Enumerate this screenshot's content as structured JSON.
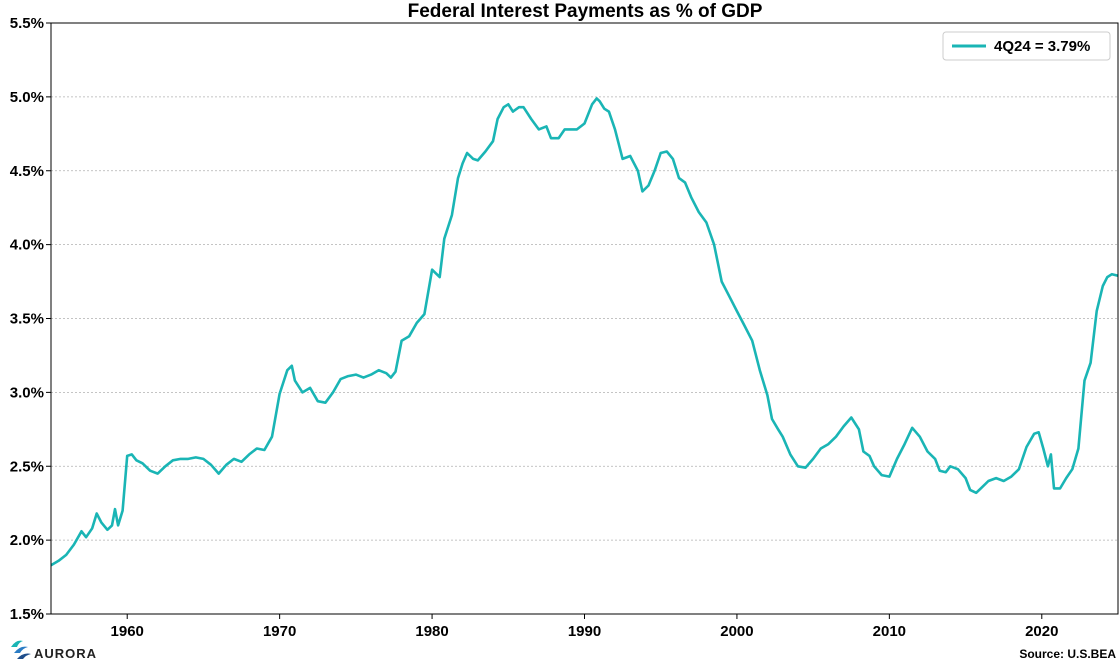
{
  "chart_data": {
    "type": "line",
    "title": "Federal Interest Payments as % of GDP",
    "xlabel": "",
    "ylabel": "",
    "xlim": [
      1955.0,
      2025.0
    ],
    "ylim": [
      1.5,
      5.5
    ],
    "x_ticks": [
      1960,
      1970,
      1980,
      1990,
      2000,
      2010,
      2020
    ],
    "x_tick_labels": [
      "1960",
      "1970",
      "1980",
      "1990",
      "2000",
      "2010",
      "2020"
    ],
    "y_ticks": [
      1.5,
      2.0,
      2.5,
      3.0,
      3.5,
      4.0,
      4.5,
      5.0,
      5.5
    ],
    "y_tick_labels": [
      "1.5%",
      "2.0%",
      "2.5%",
      "3.0%",
      "3.5%",
      "4.0%",
      "4.5%",
      "5.0%",
      "5.5%"
    ],
    "grid": "horizontal dotted",
    "legend_position": "top-right",
    "series": [
      {
        "name": "4Q24 = 3.79%",
        "color": "#1ab5b5",
        "points": [
          [
            1955.0,
            1.83
          ],
          [
            1955.5,
            1.86
          ],
          [
            1956.0,
            1.9
          ],
          [
            1956.5,
            1.97
          ],
          [
            1957.0,
            2.06
          ],
          [
            1957.3,
            2.02
          ],
          [
            1957.7,
            2.08
          ],
          [
            1958.0,
            2.18
          ],
          [
            1958.3,
            2.12
          ],
          [
            1958.7,
            2.07
          ],
          [
            1959.0,
            2.1
          ],
          [
            1959.2,
            2.21
          ],
          [
            1959.4,
            2.1
          ],
          [
            1959.7,
            2.2
          ],
          [
            1960.0,
            2.57
          ],
          [
            1960.3,
            2.58
          ],
          [
            1960.6,
            2.54
          ],
          [
            1961.0,
            2.52
          ],
          [
            1961.5,
            2.47
          ],
          [
            1962.0,
            2.45
          ],
          [
            1962.5,
            2.5
          ],
          [
            1963.0,
            2.54
          ],
          [
            1963.5,
            2.55
          ],
          [
            1964.0,
            2.55
          ],
          [
            1964.5,
            2.56
          ],
          [
            1965.0,
            2.55
          ],
          [
            1965.5,
            2.51
          ],
          [
            1966.0,
            2.45
          ],
          [
            1966.5,
            2.51
          ],
          [
            1967.0,
            2.55
          ],
          [
            1967.5,
            2.53
          ],
          [
            1968.0,
            2.58
          ],
          [
            1968.5,
            2.62
          ],
          [
            1969.0,
            2.61
          ],
          [
            1969.5,
            2.7
          ],
          [
            1970.0,
            2.99
          ],
          [
            1970.5,
            3.15
          ],
          [
            1970.8,
            3.18
          ],
          [
            1971.0,
            3.08
          ],
          [
            1971.5,
            3.0
          ],
          [
            1972.0,
            3.03
          ],
          [
            1972.5,
            2.94
          ],
          [
            1973.0,
            2.93
          ],
          [
            1973.5,
            3.0
          ],
          [
            1974.0,
            3.09
          ],
          [
            1974.5,
            3.11
          ],
          [
            1975.0,
            3.12
          ],
          [
            1975.5,
            3.1
          ],
          [
            1976.0,
            3.12
          ],
          [
            1976.5,
            3.15
          ],
          [
            1977.0,
            3.13
          ],
          [
            1977.3,
            3.1
          ],
          [
            1977.6,
            3.14
          ],
          [
            1978.0,
            3.35
          ],
          [
            1978.5,
            3.38
          ],
          [
            1979.0,
            3.47
          ],
          [
            1979.5,
            3.53
          ],
          [
            1980.0,
            3.83
          ],
          [
            1980.5,
            3.78
          ],
          [
            1980.8,
            4.04
          ],
          [
            1981.3,
            4.2
          ],
          [
            1981.7,
            4.45
          ],
          [
            1982.0,
            4.55
          ],
          [
            1982.3,
            4.62
          ],
          [
            1982.7,
            4.58
          ],
          [
            1983.0,
            4.57
          ],
          [
            1983.5,
            4.63
          ],
          [
            1984.0,
            4.7
          ],
          [
            1984.3,
            4.85
          ],
          [
            1984.7,
            4.93
          ],
          [
            1985.0,
            4.95
          ],
          [
            1985.3,
            4.9
          ],
          [
            1985.7,
            4.93
          ],
          [
            1986.0,
            4.93
          ],
          [
            1986.5,
            4.85
          ],
          [
            1987.0,
            4.78
          ],
          [
            1987.5,
            4.8
          ],
          [
            1987.8,
            4.72
          ],
          [
            1988.3,
            4.72
          ],
          [
            1988.7,
            4.78
          ],
          [
            1989.0,
            4.78
          ],
          [
            1989.5,
            4.78
          ],
          [
            1990.0,
            4.82
          ],
          [
            1990.5,
            4.95
          ],
          [
            1990.8,
            4.99
          ],
          [
            1991.0,
            4.97
          ],
          [
            1991.3,
            4.92
          ],
          [
            1991.6,
            4.9
          ],
          [
            1992.0,
            4.78
          ],
          [
            1992.5,
            4.58
          ],
          [
            1993.0,
            4.6
          ],
          [
            1993.5,
            4.5
          ],
          [
            1993.8,
            4.36
          ],
          [
            1994.2,
            4.4
          ],
          [
            1994.6,
            4.5
          ],
          [
            1995.0,
            4.62
          ],
          [
            1995.4,
            4.63
          ],
          [
            1995.8,
            4.58
          ],
          [
            1996.2,
            4.45
          ],
          [
            1996.6,
            4.42
          ],
          [
            1997.0,
            4.32
          ],
          [
            1997.5,
            4.22
          ],
          [
            1998.0,
            4.15
          ],
          [
            1998.5,
            4.0
          ],
          [
            1999.0,
            3.75
          ],
          [
            1999.5,
            3.65
          ],
          [
            2000.0,
            3.55
          ],
          [
            2000.5,
            3.45
          ],
          [
            2001.0,
            3.35
          ],
          [
            2001.5,
            3.15
          ],
          [
            2002.0,
            2.98
          ],
          [
            2002.3,
            2.82
          ],
          [
            2002.7,
            2.75
          ],
          [
            2003.0,
            2.7
          ],
          [
            2003.5,
            2.58
          ],
          [
            2004.0,
            2.5
          ],
          [
            2004.5,
            2.49
          ],
          [
            2005.0,
            2.55
          ],
          [
            2005.5,
            2.62
          ],
          [
            2006.0,
            2.65
          ],
          [
            2006.5,
            2.7
          ],
          [
            2007.0,
            2.77
          ],
          [
            2007.5,
            2.83
          ],
          [
            2008.0,
            2.75
          ],
          [
            2008.3,
            2.6
          ],
          [
            2008.7,
            2.57
          ],
          [
            2009.0,
            2.5
          ],
          [
            2009.5,
            2.44
          ],
          [
            2010.0,
            2.43
          ],
          [
            2010.5,
            2.55
          ],
          [
            2011.0,
            2.65
          ],
          [
            2011.5,
            2.76
          ],
          [
            2012.0,
            2.7
          ],
          [
            2012.5,
            2.6
          ],
          [
            2013.0,
            2.55
          ],
          [
            2013.3,
            2.47
          ],
          [
            2013.7,
            2.46
          ],
          [
            2014.0,
            2.5
          ],
          [
            2014.5,
            2.48
          ],
          [
            2015.0,
            2.42
          ],
          [
            2015.3,
            2.34
          ],
          [
            2015.7,
            2.32
          ],
          [
            2016.0,
            2.35
          ],
          [
            2016.5,
            2.4
          ],
          [
            2017.0,
            2.42
          ],
          [
            2017.5,
            2.4
          ],
          [
            2018.0,
            2.43
          ],
          [
            2018.5,
            2.48
          ],
          [
            2019.0,
            2.63
          ],
          [
            2019.5,
            2.72
          ],
          [
            2019.8,
            2.73
          ],
          [
            2020.1,
            2.62
          ],
          [
            2020.4,
            2.5
          ],
          [
            2020.6,
            2.58
          ],
          [
            2020.8,
            2.35
          ],
          [
            2021.2,
            2.35
          ],
          [
            2021.6,
            2.42
          ],
          [
            2022.0,
            2.48
          ],
          [
            2022.4,
            2.62
          ],
          [
            2022.8,
            3.08
          ],
          [
            2023.2,
            3.2
          ],
          [
            2023.6,
            3.55
          ],
          [
            2024.0,
            3.72
          ],
          [
            2024.3,
            3.78
          ],
          [
            2024.6,
            3.8
          ],
          [
            2025.0,
            3.79
          ]
        ]
      }
    ]
  },
  "footer": {
    "source": "Source: U.S.BEA",
    "brand": "AURORA",
    "brand_icon": "aurora-logo-icon"
  }
}
